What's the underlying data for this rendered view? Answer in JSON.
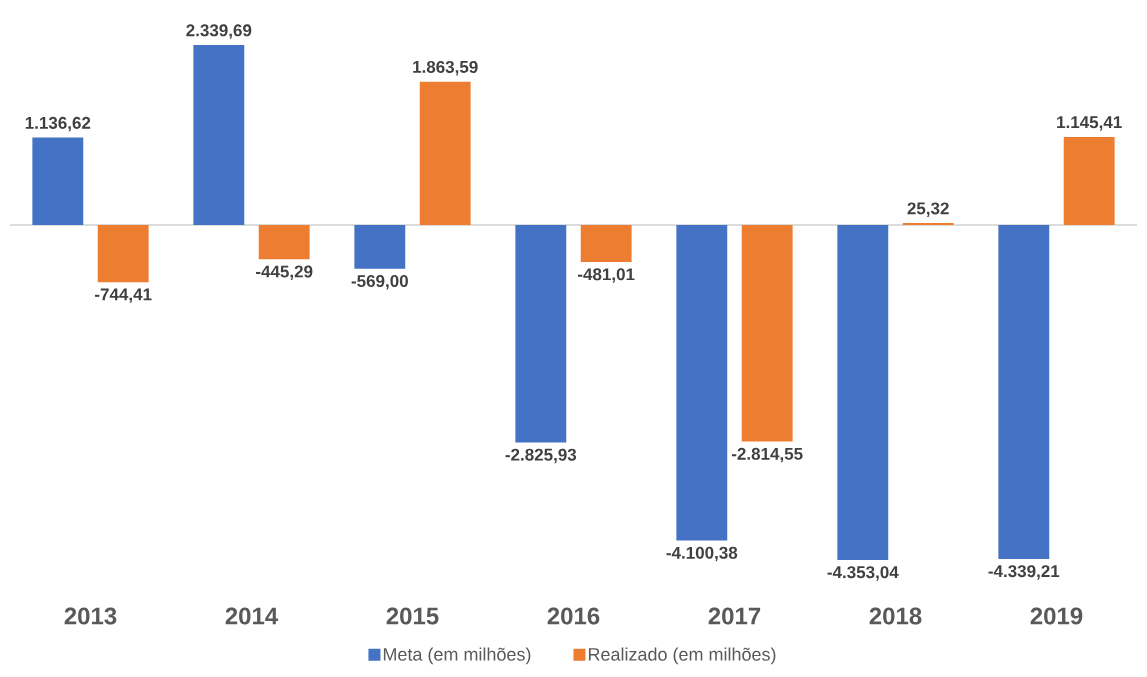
{
  "chart_data": {
    "type": "bar",
    "categories": [
      "2013",
      "2014",
      "2015",
      "2016",
      "2017",
      "2018",
      "2019"
    ],
    "series": [
      {
        "name": "Meta (em milhões)",
        "color": "#4472c4",
        "values": [
          1136.62,
          2339.69,
          -569.0,
          -2825.93,
          -4100.38,
          -4353.04,
          -4339.21
        ],
        "value_labels": [
          "1.136,62",
          "2.339,69",
          "-569,00",
          "-2.825,93",
          "-4.100,38",
          "-4.353,04",
          "-4.339,21"
        ]
      },
      {
        "name": "Realizado (em milhões)",
        "color": "#ed7d31",
        "values": [
          -744.41,
          -445.29,
          1863.59,
          -481.01,
          -2814.55,
          25.32,
          1145.41
        ],
        "value_labels": [
          "-744,41",
          "-445,29",
          "1.863,59",
          "-481,01",
          "-2.814,55",
          "25,32",
          "1.145,41"
        ]
      }
    ],
    "legend": "bottom"
  }
}
